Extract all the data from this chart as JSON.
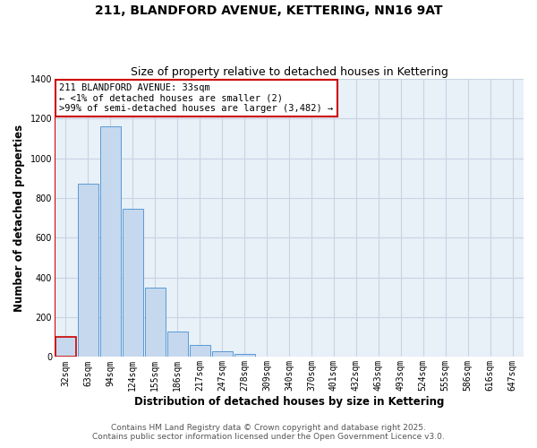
{
  "title": "211, BLANDFORD AVENUE, KETTERING, NN16 9AT",
  "subtitle": "Size of property relative to detached houses in Kettering",
  "xlabel": "Distribution of detached houses by size in Kettering",
  "ylabel": "Number of detached properties",
  "categories": [
    "32sqm",
    "63sqm",
    "94sqm",
    "124sqm",
    "155sqm",
    "186sqm",
    "217sqm",
    "247sqm",
    "278sqm",
    "309sqm",
    "340sqm",
    "370sqm",
    "401sqm",
    "432sqm",
    "463sqm",
    "493sqm",
    "524sqm",
    "555sqm",
    "586sqm",
    "616sqm",
    "647sqm"
  ],
  "values": [
    100,
    875,
    1160,
    745,
    350,
    130,
    60,
    28,
    15,
    0,
    0,
    0,
    0,
    0,
    0,
    0,
    0,
    0,
    0,
    0,
    0
  ],
  "highlight_index": 0,
  "bar_color": "#c5d8ee",
  "bar_edge_color": "#5a9ad5",
  "highlight_bar_edge_color": "#cc0000",
  "plot_bg_color": "#e8f0f8",
  "ylim": [
    0,
    1400
  ],
  "yticks": [
    0,
    200,
    400,
    600,
    800,
    1000,
    1200,
    1400
  ],
  "annotation_title": "211 BLANDFORD AVENUE: 33sqm",
  "annotation_line1": "← <1% of detached houses are smaller (2)",
  "annotation_line2": ">99% of semi-detached houses are larger (3,482) →",
  "annotation_box_color": "#ffffff",
  "annotation_box_edge": "#cc0000",
  "footer1": "Contains HM Land Registry data © Crown copyright and database right 2025.",
  "footer2": "Contains public sector information licensed under the Open Government Licence v3.0.",
  "background_color": "#ffffff",
  "grid_color": "#c8d4e4",
  "title_fontsize": 10,
  "subtitle_fontsize": 9,
  "axis_label_fontsize": 8.5,
  "tick_fontsize": 7,
  "annotation_fontsize": 7.5,
  "footer_fontsize": 6.5
}
